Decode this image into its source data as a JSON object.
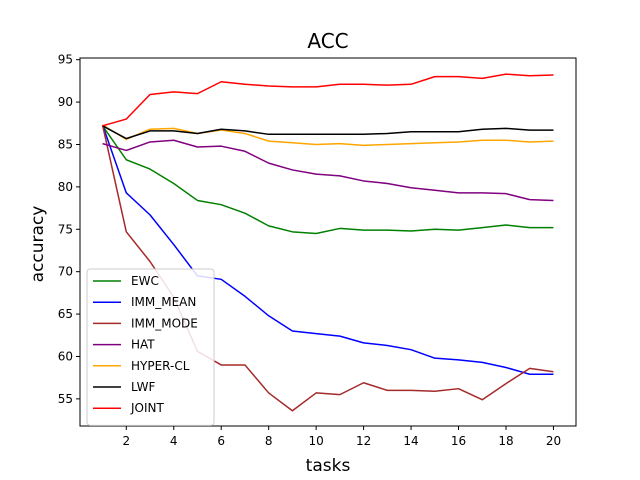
{
  "chart_data": {
    "type": "line",
    "title": "ACC",
    "xlabel": "tasks",
    "ylabel": "accuracy",
    "xlim": [
      0.05,
      20.95
    ],
    "ylim": [
      51.8,
      95.2
    ],
    "xticks": [
      2,
      4,
      6,
      8,
      10,
      12,
      14,
      16,
      18,
      20
    ],
    "yticks": [
      55,
      60,
      65,
      70,
      75,
      80,
      85,
      90,
      95
    ],
    "legend_position": "lower-left",
    "x": [
      1,
      2,
      3,
      4,
      5,
      6,
      7,
      8,
      9,
      10,
      11,
      12,
      13,
      14,
      15,
      16,
      17,
      18,
      19,
      20
    ],
    "series": [
      {
        "name": "EWC",
        "color": "#008000",
        "values": [
          87.2,
          83.2,
          82.1,
          80.4,
          78.4,
          77.9,
          76.9,
          75.4,
          74.7,
          74.5,
          75.1,
          74.9,
          74.9,
          74.8,
          75.0,
          74.9,
          75.2,
          75.5,
          75.2,
          75.2
        ]
      },
      {
        "name": "IMM_MEAN",
        "color": "#0000ff",
        "values": [
          87.3,
          79.3,
          76.7,
          73.2,
          69.5,
          69.1,
          67.1,
          64.8,
          63.0,
          62.7,
          62.4,
          61.6,
          61.3,
          60.8,
          59.8,
          59.6,
          59.3,
          58.7,
          57.9,
          57.9
        ]
      },
      {
        "name": "IMM_MODE",
        "color": "#a52a2a",
        "values": [
          87.3,
          74.7,
          71.2,
          67.0,
          60.6,
          59.0,
          59.0,
          55.7,
          53.6,
          55.7,
          55.5,
          56.9,
          56.0,
          56.0,
          55.9,
          56.2,
          54.9,
          56.8,
          58.6,
          58.2
        ]
      },
      {
        "name": "HAT",
        "color": "#800080",
        "values": [
          85.1,
          84.3,
          85.3,
          85.5,
          84.7,
          84.8,
          84.2,
          82.8,
          82.0,
          81.5,
          81.3,
          80.7,
          80.4,
          79.9,
          79.6,
          79.3,
          79.3,
          79.2,
          78.5,
          78.4
        ]
      },
      {
        "name": "HYPER-CL",
        "color": "#ffa500",
        "values": [
          87.3,
          85.6,
          86.8,
          86.9,
          86.3,
          86.7,
          86.3,
          85.4,
          85.2,
          85.0,
          85.1,
          84.9,
          85.0,
          85.1,
          85.2,
          85.3,
          85.5,
          85.5,
          85.3,
          85.4
        ]
      },
      {
        "name": "LWF",
        "color": "#000000",
        "values": [
          87.2,
          85.7,
          86.6,
          86.6,
          86.3,
          86.8,
          86.6,
          86.2,
          86.2,
          86.2,
          86.2,
          86.2,
          86.3,
          86.5,
          86.5,
          86.5,
          86.8,
          86.9,
          86.7,
          86.7
        ]
      },
      {
        "name": "JOINT",
        "color": "#ff0000",
        "values": [
          87.2,
          88.0,
          90.9,
          91.2,
          91.0,
          92.4,
          92.1,
          91.9,
          91.8,
          91.8,
          92.1,
          92.1,
          92.0,
          92.1,
          93.0,
          93.0,
          92.8,
          93.3,
          93.1,
          93.2
        ]
      }
    ]
  }
}
